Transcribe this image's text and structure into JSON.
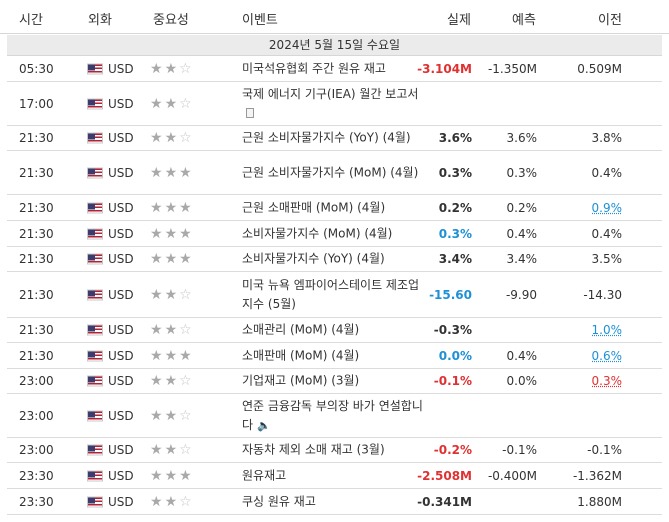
{
  "header": {
    "time": "시간",
    "currency": "외화",
    "importance": "중요성",
    "event": "이벤트",
    "actual": "실제",
    "forecast": "예측",
    "previous": "이전"
  },
  "date_label": "2024년 5월 15일 수요일",
  "colors": {
    "negative": "#e03131",
    "positive": "#1e90d6",
    "stripe": "#ebebeb"
  },
  "rows": [
    {
      "time": "05:30",
      "currency": "USD",
      "stars": 2,
      "event": "미국석유협회 주간 원유 재고",
      "actual": "-3.104M",
      "actual_color": "neg",
      "forecast": "-1.350M",
      "previous": "0.509M",
      "previous_color": ""
    },
    {
      "time": "17:00",
      "currency": "USD",
      "stars": 2,
      "event": "국제 에너지 기구(IEA) 월간 보고서",
      "icon": "document-icon",
      "actual": "",
      "forecast": "",
      "previous": ""
    },
    {
      "time": "21:30",
      "currency": "USD",
      "stars": 2,
      "event": "근원 소비자물가지수 (YoY) (4월)",
      "actual": "3.6%",
      "actual_color": "",
      "forecast": "3.6%",
      "previous": "3.8%",
      "previous_color": ""
    },
    {
      "time": "21:30",
      "currency": "USD",
      "stars": 3,
      "event": "근원 소비자물가지수 (MoM) (4월)",
      "actual": "0.3%",
      "actual_color": "",
      "forecast": "0.3%",
      "previous": "0.4%",
      "previous_color": ""
    },
    {
      "time": "21:30",
      "currency": "USD",
      "stars": 3,
      "event": "근원 소매판매 (MoM) (4월)",
      "actual": "0.2%",
      "actual_color": "",
      "forecast": "0.2%",
      "previous": "0.9%",
      "previous_color": "pos"
    },
    {
      "time": "21:30",
      "currency": "USD",
      "stars": 3,
      "event": "소비자물가지수 (MoM) (4월)",
      "actual": "0.3%",
      "actual_color": "pos",
      "forecast": "0.4%",
      "previous": "0.4%",
      "previous_color": ""
    },
    {
      "time": "21:30",
      "currency": "USD",
      "stars": 3,
      "event": "소비자물가지수 (YoY) (4월)",
      "actual": "3.4%",
      "actual_color": "",
      "forecast": "3.4%",
      "previous": "3.5%",
      "previous_color": ""
    },
    {
      "time": "21:30",
      "currency": "USD",
      "stars": 2,
      "event": "미국 뉴욕 엠파이어스테이트 제조업지수 (5월)",
      "actual": "-15.60",
      "actual_color": "pos",
      "forecast": "-9.90",
      "previous": "-14.30",
      "previous_color": ""
    },
    {
      "time": "21:30",
      "currency": "USD",
      "stars": 2,
      "event": "소매관리 (MoM) (4월)",
      "actual": "-0.3%",
      "actual_color": "",
      "forecast": "",
      "previous": "1.0%",
      "previous_color": "pos"
    },
    {
      "time": "21:30",
      "currency": "USD",
      "stars": 3,
      "event": "소매판매 (MoM) (4월)",
      "actual": "0.0%",
      "actual_color": "pos",
      "forecast": "0.4%",
      "previous": "0.6%",
      "previous_color": "pos"
    },
    {
      "time": "23:00",
      "currency": "USD",
      "stars": 2,
      "event": "기업재고 (MoM) (3월)",
      "actual": "-0.1%",
      "actual_color": "neg",
      "forecast": "0.0%",
      "previous": "0.3%",
      "previous_color": "neg"
    },
    {
      "time": "23:00",
      "currency": "USD",
      "stars": 2,
      "event": "연준 금융감독 부의장 바가 연설합니다",
      "icon": "speaker-icon",
      "actual": "",
      "forecast": "",
      "previous": ""
    },
    {
      "time": "23:00",
      "currency": "USD",
      "stars": 2,
      "event": "자동차 제외 소매 재고 (3월)",
      "actual": "-0.2%",
      "actual_color": "neg",
      "forecast": "-0.1%",
      "previous": "-0.1%",
      "previous_color": ""
    },
    {
      "time": "23:30",
      "currency": "USD",
      "stars": 3,
      "event": "원유재고",
      "actual": "-2.508M",
      "actual_color": "neg",
      "forecast": "-0.400M",
      "previous": "-1.362M",
      "previous_color": ""
    },
    {
      "time": "23:30",
      "currency": "USD",
      "stars": 2,
      "event": "쿠싱 원유 재고",
      "actual": "-0.341M",
      "actual_color": "",
      "forecast": "",
      "previous": "1.880M",
      "previous_color": ""
    }
  ]
}
